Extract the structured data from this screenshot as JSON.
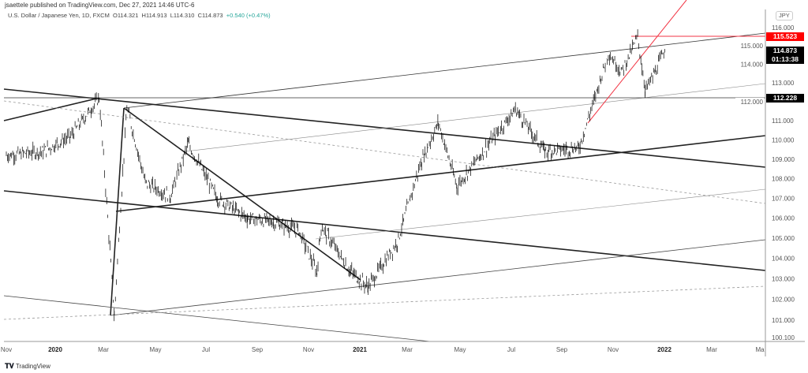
{
  "header": {
    "published": "jsaettele published on TradingView.com, Dec 27, 2021 14:46 UTC-6",
    "symbol": "U.S. Dollar / Japanese Yen, 1D, FXCM",
    "open": "O114.321",
    "high": "H114.913",
    "low": "L114.310",
    "close": "C114.873",
    "change": "+0.540 (+0.47%)"
  },
  "price_axis": {
    "currency": "JPY",
    "ticks": [
      "116.000",
      "115.000",
      "114.000",
      "113.000",
      "112.000",
      "111.000",
      "110.000",
      "109.000",
      "108.000",
      "107.000",
      "106.000",
      "105.000",
      "104.000",
      "103.000",
      "102.000",
      "101.000",
      "100.100"
    ],
    "tags": {
      "resistance": "115.523",
      "last_price": "114.873",
      "countdown": "01:13:38",
      "level": "112.228"
    }
  },
  "time_axis": {
    "ticks": [
      "Nov",
      "2020",
      "Mar",
      "May",
      "Jul",
      "Sep",
      "Nov",
      "2021",
      "Mar",
      "May",
      "Jul",
      "Sep",
      "Nov",
      "2022",
      "Mar",
      "Ma"
    ]
  },
  "colors": {
    "up": "#000000",
    "resistance": "#ff0000",
    "tag_dark": "#000000",
    "red_line": "#f23645"
  },
  "footer": {
    "brand": "TradingView"
  },
  "chart_data": {
    "type": "ohlc",
    "scale": "log",
    "ylim": [
      100.1,
      116.3
    ],
    "price_path": [
      [
        "2019-11-01",
        109.2
      ],
      [
        "2019-12-15",
        109.4
      ],
      [
        "2020-01-17",
        110.2
      ],
      [
        "2020-02-20",
        112.2
      ],
      [
        "2020-03-09",
        101.2
      ],
      [
        "2020-03-24",
        111.7
      ],
      [
        "2020-04-15",
        107.8
      ],
      [
        "2020-05-15",
        107.1
      ],
      [
        "2020-06-05",
        109.8
      ],
      [
        "2020-07-10",
        107.0
      ],
      [
        "2020-08-15",
        106.0
      ],
      [
        "2020-09-15",
        105.8
      ],
      [
        "2020-10-15",
        105.4
      ],
      [
        "2020-11-06",
        103.3
      ],
      [
        "2020-11-11",
        105.6
      ],
      [
        "2020-12-15",
        103.4
      ],
      [
        "2021-01-06",
        102.6
      ],
      [
        "2021-02-10",
        104.8
      ],
      [
        "2021-03-10",
        108.8
      ],
      [
        "2021-03-31",
        110.9
      ],
      [
        "2021-04-22",
        107.6
      ],
      [
        "2021-05-20",
        109.2
      ],
      [
        "2021-07-01",
        111.6
      ],
      [
        "2021-08-05",
        109.4
      ],
      [
        "2021-09-15",
        109.6
      ],
      [
        "2021-10-01",
        111.8
      ],
      [
        "2021-10-20",
        114.6
      ],
      [
        "2021-11-05",
        113.6
      ],
      [
        "2021-11-24",
        115.5
      ],
      [
        "2021-12-03",
        112.6
      ],
      [
        "2021-12-15",
        113.6
      ],
      [
        "2021-12-27",
        114.873
      ]
    ]
  }
}
